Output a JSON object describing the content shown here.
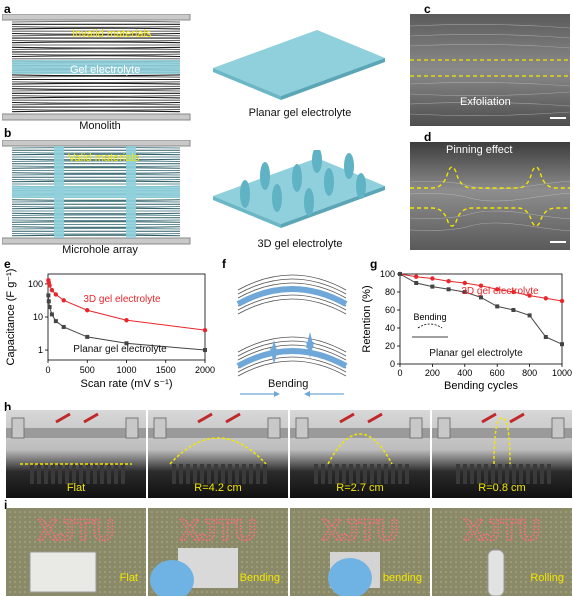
{
  "panels": {
    "a": {
      "label": "a",
      "invalid": "Invalid materials",
      "gel": "Gel electrolyte",
      "caption_left": "Monolith",
      "caption_right": "Planar gel electrolyte"
    },
    "b": {
      "label": "b",
      "valid": "Valid materials",
      "caption_left": "Microhole array",
      "caption_right": "3D gel electrolyte"
    },
    "c": {
      "label": "c",
      "annotation": "Exfoliation"
    },
    "d": {
      "label": "d",
      "annotation": "Pinning effect"
    },
    "e": {
      "label": "e"
    },
    "f": {
      "label": "f",
      "bending": "Bending"
    },
    "g": {
      "label": "g"
    },
    "h": {
      "label": "h",
      "photos": [
        "Flat",
        "R=4.2 cm",
        "R=2.7 cm",
        "R=0.8 cm"
      ]
    },
    "i": {
      "label": "i",
      "photos": [
        "Flat",
        "Bending",
        "bending",
        "Rolling"
      ],
      "sign": "XJTU"
    }
  },
  "colors": {
    "red": "#e8262b",
    "gray": "#444444",
    "gel": "#8fd0dc",
    "yellow": "#f2e600"
  },
  "chart_data": [
    {
      "type": "line",
      "panel": "e",
      "xlabel": "Scan rate (mV s⁻¹)",
      "ylabel": "Capacitance (F g⁻¹)",
      "yscale": "log",
      "xlim": [
        0,
        2000
      ],
      "ylim": [
        0.5,
        200
      ],
      "xticks": [
        "0",
        "500",
        "1000",
        "1500",
        "2000"
      ],
      "yticks": [
        "1",
        "10",
        "100"
      ],
      "series": [
        {
          "name": "3D gel electrolyte",
          "color": "#e8262b",
          "x": [
            5,
            10,
            20,
            50,
            100,
            200,
            500,
            1000,
            2000
          ],
          "y": [
            130,
            110,
            90,
            65,
            48,
            32,
            16,
            8,
            4
          ]
        },
        {
          "name": "Planar gel electrolyte",
          "color": "#444444",
          "x": [
            5,
            10,
            20,
            50,
            100,
            200,
            500,
            1000,
            2000
          ],
          "y": [
            45,
            30,
            20,
            12,
            7.5,
            5,
            2.5,
            1.6,
            1.0
          ]
        }
      ]
    },
    {
      "type": "line",
      "panel": "g",
      "xlabel": "Bending cycles",
      "ylabel": "Retention (%)",
      "xlim": [
        0,
        1000
      ],
      "ylim": [
        0,
        100
      ],
      "xticks": [
        "0",
        "200",
        "400",
        "600",
        "800",
        "1000"
      ],
      "yticks": [
        "0",
        "20",
        "40",
        "60",
        "80",
        "100"
      ],
      "inset_label": "Bending",
      "series": [
        {
          "name": "3D gel electrolyte",
          "color": "#e8262b",
          "x": [
            0,
            100,
            200,
            300,
            400,
            500,
            600,
            700,
            800,
            900,
            1000
          ],
          "y": [
            100,
            97,
            95,
            92,
            90,
            87,
            83,
            80,
            76,
            73,
            70
          ]
        },
        {
          "name": "Planar gel electrolyte",
          "color": "#444444",
          "x": [
            0,
            100,
            200,
            300,
            400,
            500,
            600,
            700,
            800,
            900,
            1000
          ],
          "y": [
            100,
            90,
            86,
            83,
            80,
            74,
            64,
            60,
            54,
            30,
            22
          ]
        }
      ]
    }
  ]
}
